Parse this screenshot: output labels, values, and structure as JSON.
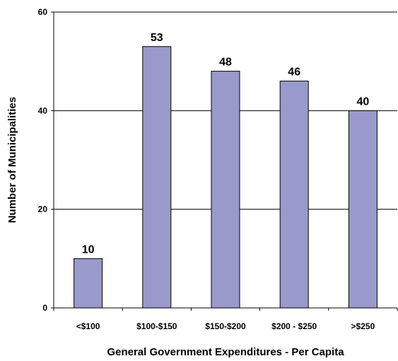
{
  "chart_data": {
    "type": "bar",
    "title": "",
    "xlabel": "General Government Expenditures - Per Capita",
    "ylabel": "Number of Municipalities",
    "categories": [
      "<$100",
      "$100-$150",
      "$150-$200",
      "$200 - $250",
      ">$250"
    ],
    "values": [
      10,
      53,
      48,
      46,
      40
    ],
    "data_labels": [
      "10",
      "53",
      "48",
      "46",
      "40"
    ],
    "ylim": [
      0,
      60
    ],
    "yticks": [
      0,
      20,
      40,
      60
    ],
    "ytick_labels": [
      "0",
      "20",
      "40",
      "60"
    ],
    "grid": true,
    "legend": "none",
    "colors": {
      "bar_fill": "#9999cc",
      "bar_stroke": "#000000",
      "gridline": "#000000",
      "axis": "#000000"
    }
  }
}
